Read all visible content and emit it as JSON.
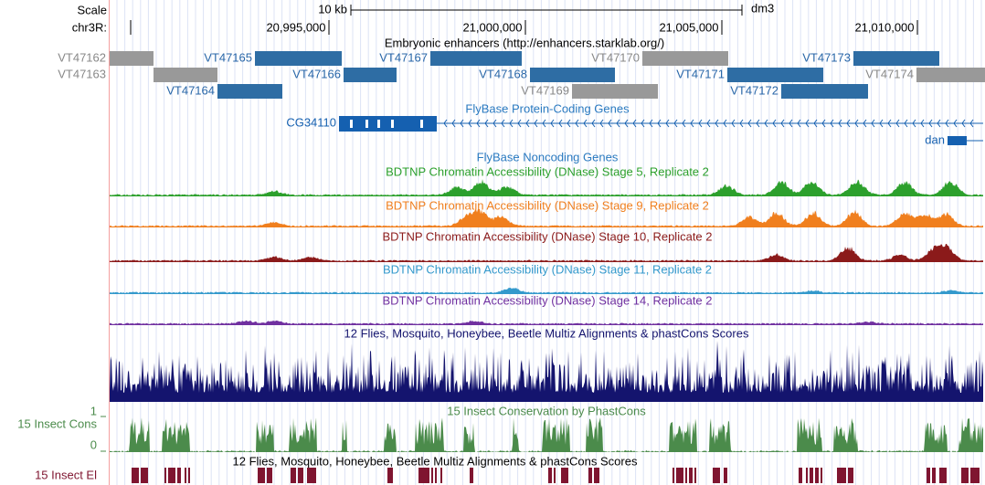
{
  "ruler": {
    "scale_label": "Scale",
    "scale_bar": "10 kb",
    "assembly": "dm3",
    "chrom": "chr3R:",
    "positions": [
      "20,995,000",
      "21,000,000",
      "21,005,000",
      "21,010,000"
    ]
  },
  "tracks": {
    "enhancers": {
      "title": "Embryonic enhancers (http://enhancers.starklab.org/)",
      "features": [
        "VT47162",
        "VT47163",
        "VT47164",
        "VT47165",
        "VT47166",
        "VT47167",
        "VT47168",
        "VT47169",
        "VT47170",
        "VT47171",
        "VT47172",
        "VT47173",
        "VT47174"
      ]
    },
    "coding_genes": {
      "title": "FlyBase Protein-Coding Genes",
      "genes": [
        "CG34110",
        "dan"
      ]
    },
    "noncoding_genes": {
      "title": "FlyBase Noncoding Genes"
    },
    "dnase": [
      {
        "title": "BDTNP Chromatin Accessibility (DNase) Stage 5, Replicate 2",
        "color": "#2ca02c"
      },
      {
        "title": "BDTNP Chromatin Accessibility (DNase) Stage 9, Replicate 2",
        "color": "#f07f1e"
      },
      {
        "title": "BDTNP Chromatin Accessibility (DNase) Stage 10, Replicate 2",
        "color": "#8b1a1a"
      },
      {
        "title": "BDTNP Chromatin Accessibility (DNase) Stage 11, Replicate 2",
        "color": "#3399cc"
      },
      {
        "title": "BDTNP Chromatin Accessibility (DNase) Stage 14, Replicate 2",
        "color": "#7030a0"
      }
    ],
    "multiz": {
      "title": "12 Flies, Mosquito, Honeybee, Beetle Multiz Alignments & phastCons Scores",
      "color": "#14146e"
    },
    "phastcons": {
      "title": "15 Insect Conservation by PhastCons",
      "label": "15 Insect Cons",
      "max_label": "1",
      "min_label": "0",
      "color": "#4b8b4b"
    },
    "elements": {
      "title": "12 Flies, Mosquito, Honeybee, Beetle Multiz Alignments & phastCons Scores",
      "label": "15 Insect El",
      "color": "#7f1530"
    }
  }
}
